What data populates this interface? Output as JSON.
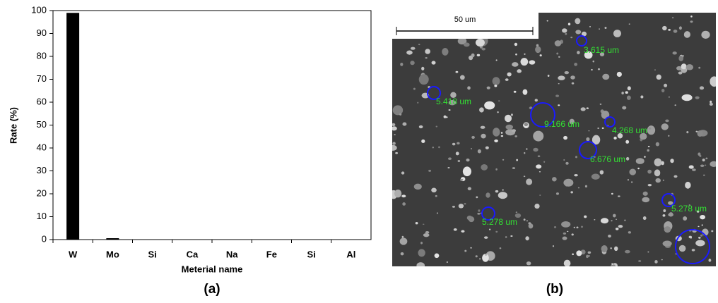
{
  "chart_data": {
    "type": "bar",
    "categories": [
      "W",
      "Mo",
      "Si",
      "Ca",
      "Na",
      "Fe",
      "Si",
      "Al"
    ],
    "values": [
      99,
      0.6,
      0,
      0,
      0,
      0,
      0,
      0
    ],
    "color": "#000000",
    "x_label": "Meterial name",
    "y_label": "Rate (%)",
    "ylim": [
      0,
      100
    ],
    "yticks": [
      0,
      10,
      20,
      30,
      40,
      50,
      60,
      70,
      80,
      90,
      100
    ]
  },
  "panels": [
    "(a)",
    "(b)"
  ],
  "image": {
    "scale_bar": "50 um",
    "labels": [
      "3.615 um",
      "5.418 um",
      "9.166 um",
      "4.268 um",
      "6.676 um",
      "5.278 um",
      "5.278 um"
    ]
  }
}
